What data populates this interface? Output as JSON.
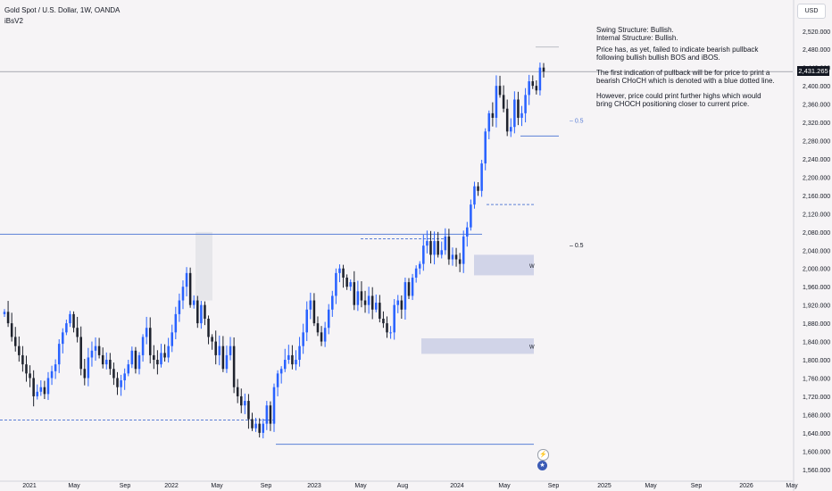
{
  "header": {
    "title": "Gold Spot / U.S. Dollar, 1W, OANDA",
    "indicator": "iBsV2"
  },
  "currency_button": "USD",
  "current_price": "2,431.265",
  "notes": {
    "structure": [
      "Swing Structure: Bullish.",
      "Internal Structure: Bullish."
    ],
    "p1": "Price has, as yet, failed to indicate bearish pullback following bullish bullish BOS and iBOS.",
    "p2": "The first indication of pullback will be for price to print a bearish CHoCH which is denoted with a blue dotted line.",
    "p3": "However, price could print further highs which would bring CHOCH positioning closer to current price."
  },
  "icons": {
    "flash": "flash-icon",
    "event": "us-flag-icon"
  },
  "colors": {
    "bull": "#2962ff",
    "bear": "#1e222d",
    "zone": "#d1d4e8",
    "structure_line": "#5b7fd6",
    "background": "#f6f4f6"
  },
  "chart_data": {
    "type": "candlestick",
    "timeframe": "1W",
    "symbol": "XAUUSD",
    "ylim": [
      1540,
      2545
    ],
    "y_ticks": [
      "1,560.000",
      "1,600.000",
      "1,640.000",
      "1,680.000",
      "1,720.000",
      "1,760.000",
      "1,800.000",
      "1,840.000",
      "1,880.000",
      "1,920.000",
      "1,960.000",
      "2,000.000",
      "2,040.000",
      "2,080.000",
      "2,120.000",
      "2,160.000",
      "2,200.000",
      "2,240.000",
      "2,280.000",
      "2,320.000",
      "2,360.000",
      "2,400.000",
      "2,440.000",
      "2,480.000",
      "2,520.000"
    ],
    "x_ticks": [
      "2021",
      "May",
      "Sep",
      "2022",
      "May",
      "Sep",
      "2023",
      "May",
      "Aug",
      "2024",
      "May",
      "Sep",
      "2025",
      "May",
      "Sep",
      "2026",
      "May"
    ],
    "closes": [
      1905,
      1880,
      1850,
      1830,
      1810,
      1790,
      1770,
      1760,
      1720,
      1730,
      1740,
      1725,
      1760,
      1775,
      1790,
      1835,
      1860,
      1880,
      1900,
      1870,
      1850,
      1780,
      1760,
      1805,
      1820,
      1830,
      1810,
      1790,
      1800,
      1780,
      1760,
      1740,
      1755,
      1770,
      1790,
      1820,
      1780,
      1810,
      1850,
      1870,
      1810,
      1800,
      1790,
      1815,
      1805,
      1830,
      1860,
      1900,
      1930,
      1960,
      1990,
      1920,
      1930,
      1880,
      1920,
      1890,
      1850,
      1840,
      1810,
      1830,
      1780,
      1810,
      1830,
      1740,
      1720,
      1700,
      1710,
      1670,
      1650,
      1660,
      1640,
      1660,
      1700,
      1660,
      1740,
      1770,
      1780,
      1800,
      1810,
      1790,
      1800,
      1830,
      1860,
      1910,
      1930,
      1880,
      1860,
      1840,
      1870,
      1910,
      1940,
      1990,
      2000,
      1980,
      1960,
      1970,
      1920,
      1950,
      1930,
      1920,
      1940,
      1910,
      1925,
      1890,
      1880,
      1860,
      1860,
      1920,
      1930,
      1910,
      1970,
      1940,
      1980,
      2000,
      2010,
      2050,
      2060,
      2030,
      2060,
      2030,
      2040,
      2070,
      2020,
      2030,
      2020,
      2010,
      2070,
      2090,
      2140,
      2180,
      2170,
      2230,
      2300,
      2340,
      2330,
      2400,
      2380,
      2350,
      2300,
      2310,
      2370,
      2330,
      2340,
      2380,
      2410,
      2400,
      2390,
      2440,
      2431.265
    ],
    "annotations": [
      {
        "label": "0.5",
        "price": 2325
      },
      {
        "label": "0.5",
        "price": 2052
      },
      {
        "label": "W",
        "type": "order-block",
        "price_range": [
          1985,
          2030
        ]
      },
      {
        "label": "W",
        "type": "order-block",
        "price_range": [
          1813,
          1847
        ]
      }
    ]
  }
}
